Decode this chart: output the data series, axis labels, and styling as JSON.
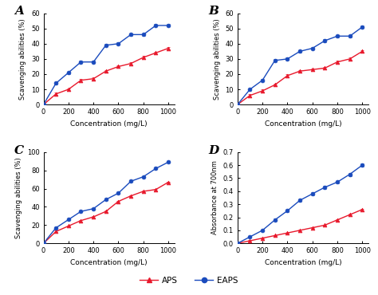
{
  "x": [
    0,
    100,
    200,
    300,
    400,
    500,
    600,
    700,
    800,
    900,
    1000
  ],
  "A_aps": [
    0,
    7,
    10,
    16,
    17,
    22,
    25,
    27,
    31,
    34,
    37
  ],
  "A_eaps": [
    0,
    14,
    21,
    28,
    28,
    39,
    40,
    46,
    46,
    52,
    52
  ],
  "B_aps": [
    0,
    6,
    9,
    13,
    19,
    22,
    23,
    24,
    28,
    30,
    35
  ],
  "B_eaps": [
    0,
    10,
    16,
    29,
    30,
    35,
    37,
    42,
    45,
    45,
    51
  ],
  "C_aps": [
    0,
    13,
    19,
    25,
    29,
    35,
    46,
    52,
    57,
    59,
    67
  ],
  "C_eaps": [
    0,
    17,
    26,
    35,
    38,
    48,
    55,
    68,
    73,
    82,
    89
  ],
  "D_aps": [
    0,
    0.02,
    0.04,
    0.06,
    0.08,
    0.1,
    0.12,
    0.14,
    0.18,
    0.22,
    0.26
  ],
  "D_eaps": [
    0,
    0.05,
    0.1,
    0.18,
    0.25,
    0.33,
    0.38,
    0.43,
    0.47,
    0.53,
    0.6
  ],
  "A_ylim": [
    0,
    60
  ],
  "B_ylim": [
    0,
    60
  ],
  "C_ylim": [
    0,
    100
  ],
  "D_ylim": [
    0,
    0.7
  ],
  "A_yticks": [
    0,
    10,
    20,
    30,
    40,
    50,
    60
  ],
  "B_yticks": [
    0,
    10,
    20,
    30,
    40,
    50,
    60
  ],
  "C_yticks": [
    0,
    20,
    40,
    60,
    80,
    100
  ],
  "D_yticks": [
    0.0,
    0.1,
    0.2,
    0.3,
    0.4,
    0.5,
    0.6,
    0.7
  ],
  "xticks": [
    0,
    200,
    400,
    600,
    800,
    1000
  ],
  "xlabel": "Concentration (mg/L)",
  "ylabel_scav": "Scavenging abilities (%)",
  "ylabel_abs": "Absorbance at 700nm",
  "color_aps": "#e8192c",
  "color_eaps": "#1a4bbd",
  "panel_labels": [
    "A",
    "B",
    "C",
    "D"
  ],
  "err_small": [
    0,
    0.8,
    0.8,
    0.8,
    0.8,
    0.8,
    0.8,
    0.8,
    0.8,
    0.8,
    0.8
  ],
  "A_err_eaps": [
    0,
    1.0,
    1.0,
    1.0,
    1.0,
    1.0,
    1.0,
    1.0,
    1.0,
    1.0,
    1.0
  ],
  "D_err_aps": [
    0,
    0.003,
    0.004,
    0.004,
    0.004,
    0.005,
    0.005,
    0.005,
    0.006,
    0.006,
    0.006
  ],
  "D_err_eaps": [
    0,
    0.005,
    0.006,
    0.008,
    0.008,
    0.01,
    0.01,
    0.01,
    0.01,
    0.012,
    0.012
  ]
}
